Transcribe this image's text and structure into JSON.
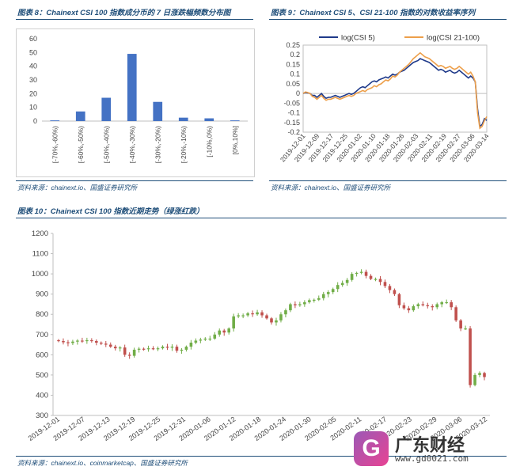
{
  "fig8": {
    "caption": "图表 8：Chainext CSI 100 指数成分币的 7 日涨跌幅频数分布图",
    "source": "资料来源：chainext.io、国盛证券研究所"
  },
  "fig9": {
    "caption": "图表 9：Chainext CSI 5、CSI 21-100 指数的对数收益率序列",
    "source": "资料来源：chainext.io、国盛证券研究所"
  },
  "fig10": {
    "caption": "图表 10：Chainext CSI 100 指数近期走势（绿涨红跌）",
    "source": "资料来源：chainext.io、coinmarketcap、国盛证券研究所"
  },
  "watermark": {
    "logo": "G",
    "name": "广东财经",
    "url": "www.gd0021.com"
  },
  "colors": {
    "blue": "#4472c4",
    "navy": "#1f3a8a",
    "orange": "#ed9f4a",
    "up": "#70ad47",
    "down": "#c0504d"
  },
  "chart_data": [
    {
      "type": "bar",
      "categories": [
        "[-70%,-60%)",
        "[-60%,-50%)",
        "[-50%,-40%)",
        "[-40%,-30%)",
        "[-30%,-20%)",
        "[-20%,-10%)",
        "[-10%,0%)",
        "[0%,10%]"
      ],
      "values": [
        0.5,
        7,
        17,
        49,
        14,
        2.5,
        2,
        0.5
      ],
      "ylim": [
        0,
        60
      ],
      "yticks": [
        0,
        10,
        20,
        30,
        40,
        50,
        60
      ]
    },
    {
      "type": "line",
      "legend_position": "top",
      "ylim": [
        -0.2,
        0.25
      ],
      "yticks": [
        "0.25",
        "0.2",
        "0.15",
        "0.1",
        "0.05",
        "0",
        "-0.05",
        "-0.1",
        "-0.15",
        "-0.2"
      ],
      "xticks": [
        "2019-12-01",
        "2019-12-09",
        "2019-12-17",
        "2019-12-25",
        "2020-01-02",
        "2020-01-10",
        "2020-01-18",
        "2020-01-26",
        "2020-02-03",
        "2020-02-11",
        "2020-02-19",
        "2020-02-27",
        "2020-03-06",
        "2020-03-14"
      ],
      "series": [
        {
          "name": "log(CSI 5)",
          "values": [
            0.0,
            0.005,
            0.003,
            0.0,
            -0.01,
            -0.01,
            -0.02,
            -0.01,
            0.0,
            -0.015,
            -0.025,
            -0.02,
            -0.02,
            -0.015,
            -0.01,
            -0.015,
            -0.02,
            -0.015,
            -0.01,
            -0.005,
            0.0,
            -0.005,
            0.0,
            0.01,
            0.02,
            0.03,
            0.035,
            0.03,
            0.04,
            0.05,
            0.06,
            0.065,
            0.06,
            0.07,
            0.075,
            0.08,
            0.085,
            0.08,
            0.09,
            0.1,
            0.095,
            0.1,
            0.11,
            0.115,
            0.12,
            0.13,
            0.14,
            0.15,
            0.16,
            0.165,
            0.17,
            0.18,
            0.175,
            0.17,
            0.165,
            0.16,
            0.15,
            0.14,
            0.13,
            0.12,
            0.125,
            0.12,
            0.11,
            0.115,
            0.12,
            0.11,
            0.105,
            0.11,
            0.12,
            0.11,
            0.1,
            0.09,
            0.08,
            0.09,
            0.08,
            0.06,
            -0.08,
            -0.17,
            -0.16,
            -0.13,
            -0.14
          ]
        },
        {
          "name": "log(CSI 21-100)",
          "values": [
            0.0,
            0.008,
            0.005,
            0.0,
            -0.015,
            -0.02,
            -0.03,
            -0.02,
            -0.01,
            -0.025,
            -0.035,
            -0.03,
            -0.03,
            -0.025,
            -0.02,
            -0.025,
            -0.03,
            -0.025,
            -0.02,
            -0.015,
            -0.01,
            -0.015,
            -0.01,
            0.0,
            0.005,
            0.01,
            0.015,
            0.01,
            0.02,
            0.025,
            0.03,
            0.04,
            0.035,
            0.045,
            0.05,
            0.06,
            0.07,
            0.065,
            0.075,
            0.09,
            0.085,
            0.095,
            0.11,
            0.12,
            0.13,
            0.14,
            0.15,
            0.165,
            0.18,
            0.19,
            0.2,
            0.21,
            0.2,
            0.19,
            0.185,
            0.18,
            0.17,
            0.16,
            0.15,
            0.14,
            0.145,
            0.14,
            0.13,
            0.135,
            0.14,
            0.13,
            0.125,
            0.13,
            0.14,
            0.13,
            0.12,
            0.11,
            0.1,
            0.11,
            0.09,
            0.06,
            -0.1,
            -0.18,
            -0.17,
            -0.14,
            -0.12
          ]
        }
      ]
    },
    {
      "type": "candlestick",
      "ylim": [
        300,
        1200
      ],
      "yticks": [
        300,
        400,
        500,
        600,
        700,
        800,
        900,
        1000,
        1100,
        1200
      ],
      "xticks": [
        "2019-12-01",
        "2019-12-07",
        "2019-12-13",
        "2019-12-19",
        "2019-12-25",
        "2019-12-31",
        "2020-01-06",
        "2020-01-12",
        "2020-01-18",
        "2020-01-24",
        "2020-01-30",
        "2020-02-05",
        "2020-02-11",
        "2020-02-17",
        "2020-02-23",
        "2020-02-29",
        "2020-03-06",
        "2020-03-12"
      ],
      "close": [
        668,
        662,
        658,
        665,
        670,
        668,
        672,
        668,
        660,
        655,
        650,
        640,
        632,
        636,
        600,
        595,
        625,
        630,
        628,
        632,
        630,
        632,
        640,
        635,
        640,
        620,
        625,
        640,
        660,
        670,
        675,
        680,
        680,
        700,
        720,
        710,
        730,
        790,
        795,
        795,
        805,
        800,
        810,
        795,
        780,
        760,
        770,
        800,
        820,
        850,
        845,
        850,
        860,
        870,
        872,
        880,
        900,
        910,
        925,
        945,
        955,
        970,
        1000,
        1005,
        1010,
        990,
        975,
        975,
        960,
        940,
        920,
        900,
        845,
        830,
        820,
        840,
        850,
        845,
        840,
        835,
        850,
        860,
        860,
        835,
        770,
        730,
        730,
        450,
        500,
        510,
        490
      ]
    }
  ]
}
